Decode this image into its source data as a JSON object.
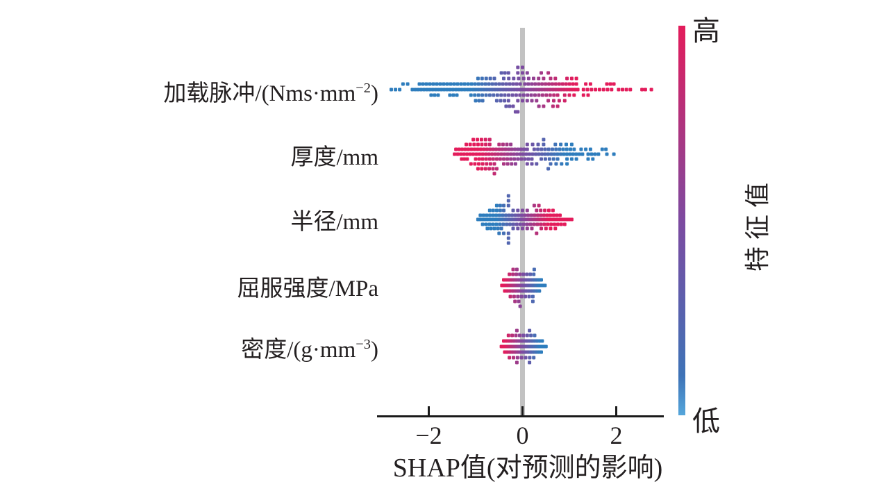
{
  "chart_data": {
    "type": "scatter",
    "subtype": "shap-beeswarm-summary",
    "x_axis": {
      "title": "SHAP值(对预测的影响)",
      "range": [
        -3.1,
        3.1
      ],
      "ticks": [
        {
          "value": -2,
          "label": "−2"
        },
        {
          "value": 0,
          "label": "0"
        },
        {
          "value": 2,
          "label": "2"
        }
      ]
    },
    "axis_color": "#1a1a1a",
    "zero_line_color": "#c2c2c2",
    "colorbar": {
      "title": "特征值",
      "high_label": "高",
      "low_label": "低",
      "color_high": "#e31c5b",
      "color_mid": "#7d4aa0",
      "color_low": "#2e7dbd",
      "color_low_tip": "#55a6db"
    },
    "runs_format": "[row_offset_px, shap_from, shap_to, point_count]; point color = feature value, increasing with shap*color_dir saturated at |shap|=color_scale",
    "features": [
      {
        "name": "loading-impulse",
        "label_main": "加载脉冲/(Nms·mm",
        "label_sup": "−2",
        "label_end": ")",
        "shap_range": [
          -2.8,
          2.75
        ],
        "color_dir": 1,
        "color_scale": 1.1,
        "runs": [
          [
            0,
            -2.8,
            -2.62,
            3
          ],
          [
            0,
            -2.35,
            -1.05,
            22
          ],
          [
            0,
            -1.0,
            1.18,
            38
          ],
          [
            0,
            1.3,
            1.9,
            8
          ],
          [
            0,
            2.05,
            2.3,
            4
          ],
          [
            0,
            2.55,
            2.62,
            2
          ],
          [
            0,
            2.75,
            2.75,
            1
          ],
          [
            -8,
            -2.55,
            -2.45,
            2
          ],
          [
            -8,
            -2.2,
            -0.05,
            30
          ],
          [
            -8,
            0.05,
            1.15,
            16
          ],
          [
            -8,
            1.35,
            1.45,
            2
          ],
          [
            -8,
            1.8,
            1.95,
            3
          ],
          [
            8,
            -1.95,
            -1.8,
            3
          ],
          [
            8,
            -1.55,
            -1.4,
            3
          ],
          [
            8,
            -1.1,
            0.75,
            24
          ],
          [
            8,
            0.9,
            1.1,
            3
          ],
          [
            8,
            1.3,
            1.4,
            2
          ],
          [
            -16,
            -0.95,
            -0.6,
            5
          ],
          [
            -16,
            -0.4,
            0.45,
            9
          ],
          [
            -16,
            0.6,
            0.7,
            2
          ],
          [
            -16,
            0.95,
            1.15,
            3
          ],
          [
            16,
            -1.0,
            -0.85,
            3
          ],
          [
            16,
            -0.55,
            -0.3,
            4
          ],
          [
            16,
            -0.1,
            0.3,
            5
          ],
          [
            16,
            0.55,
            0.9,
            4
          ],
          [
            -24,
            -0.45,
            -0.3,
            3
          ],
          [
            -24,
            -0.1,
            0.1,
            3
          ],
          [
            -24,
            0.4,
            0.55,
            2
          ],
          [
            24,
            -0.35,
            -0.2,
            3
          ],
          [
            24,
            0.35,
            0.45,
            2
          ],
          [
            24,
            0.65,
            0.75,
            2
          ],
          [
            -32,
            -0.1,
            0.0,
            2
          ],
          [
            32,
            -0.15,
            -0.1,
            2
          ]
        ]
      },
      {
        "name": "thickness",
        "label_main": "厚度/mm",
        "label_sup": "",
        "label_end": "",
        "shap_range": [
          -1.5,
          1.95
        ],
        "color_dir": -1,
        "color_scale": 0.9,
        "runs": [
          [
            0,
            -1.45,
            1.28,
            42
          ],
          [
            0,
            1.4,
            1.62,
            4
          ],
          [
            0,
            1.8,
            1.8,
            1
          ],
          [
            0,
            1.95,
            1.95,
            1
          ],
          [
            -7,
            -1.42,
            0.1,
            24
          ],
          [
            -7,
            0.25,
            1.1,
            12
          ],
          [
            -7,
            1.25,
            1.45,
            3
          ],
          [
            -7,
            1.7,
            1.78,
            2
          ],
          [
            7,
            -1.3,
            -1.18,
            3
          ],
          [
            7,
            -1.0,
            0.2,
            17
          ],
          [
            7,
            0.4,
            0.75,
            5
          ],
          [
            7,
            0.95,
            1.15,
            3
          ],
          [
            7,
            1.4,
            1.5,
            2
          ],
          [
            -14,
            -1.2,
            -0.7,
            7
          ],
          [
            -14,
            -0.5,
            -0.25,
            4
          ],
          [
            -14,
            0.1,
            0.45,
            4
          ],
          [
            -14,
            0.7,
            1.05,
            4
          ],
          [
            14,
            -1.1,
            -0.6,
            7
          ],
          [
            14,
            -0.4,
            -0.15,
            4
          ],
          [
            14,
            0.1,
            0.3,
            3
          ],
          [
            14,
            0.6,
            0.95,
            4
          ],
          [
            -21,
            -1.05,
            -0.7,
            5
          ],
          [
            -21,
            0.45,
            0.45,
            1
          ],
          [
            21,
            -0.95,
            -0.55,
            6
          ],
          [
            21,
            0.55,
            0.55,
            1
          ],
          [
            28,
            -0.6,
            -0.6,
            1
          ]
        ]
      },
      {
        "name": "radius",
        "label_main": "半径/mm",
        "label_sup": "",
        "label_end": "",
        "shap_range": [
          -0.95,
          1.05
        ],
        "color_dir": 1,
        "color_scale": 0.55,
        "runs": [
          [
            0,
            -0.95,
            1.05,
            40
          ],
          [
            -6,
            -0.9,
            0.8,
            26
          ],
          [
            7,
            -0.85,
            0.9,
            25
          ],
          [
            -13,
            -0.7,
            -0.4,
            5
          ],
          [
            -13,
            -0.2,
            0.1,
            4
          ],
          [
            -13,
            0.3,
            0.65,
            5
          ],
          [
            13,
            -0.75,
            -0.45,
            5
          ],
          [
            13,
            -0.2,
            0.2,
            5
          ],
          [
            13,
            0.4,
            0.7,
            4
          ],
          [
            -20,
            -0.55,
            -0.4,
            3
          ],
          [
            -20,
            -0.3,
            -0.3,
            1
          ],
          [
            -20,
            0.25,
            0.35,
            2
          ],
          [
            20,
            -0.5,
            -0.4,
            2
          ],
          [
            20,
            -0.3,
            -0.3,
            1
          ],
          [
            20,
            0.3,
            0.3,
            1
          ],
          [
            -27,
            -0.3,
            -0.3,
            1
          ],
          [
            -34,
            -0.3,
            -0.3,
            1
          ],
          [
            27,
            -0.3,
            -0.3,
            1
          ],
          [
            34,
            -0.3,
            -0.3,
            1
          ]
        ]
      },
      {
        "name": "yield-strength",
        "label_main": "屈服强度/MPa",
        "label_sup": "",
        "label_end": "",
        "shap_range": [
          -0.45,
          0.5
        ],
        "color_dir": -1,
        "color_scale": 0.38,
        "runs": [
          [
            0,
            -0.44,
            0.48,
            24
          ],
          [
            -8,
            -0.4,
            0.4,
            16
          ],
          [
            8,
            -0.38,
            0.36,
            14
          ],
          [
            -16,
            -0.28,
            0.24,
            8
          ],
          [
            16,
            -0.26,
            0.22,
            7
          ],
          [
            -23,
            -0.2,
            -0.12,
            2
          ],
          [
            -23,
            0.25,
            0.25,
            1
          ],
          [
            23,
            -0.16,
            -0.08,
            2
          ],
          [
            23,
            0.22,
            0.22,
            1
          ],
          [
            30,
            -0.05,
            -0.05,
            1
          ]
        ]
      },
      {
        "name": "density",
        "label_main": "密度/(g·mm",
        "label_sup": "−3",
        "label_end": ")",
        "shap_range": [
          -0.45,
          0.5
        ],
        "color_dir": -1,
        "color_scale": 0.38,
        "runs": [
          [
            0,
            -0.45,
            0.5,
            24
          ],
          [
            -8,
            -0.4,
            0.42,
            16
          ],
          [
            8,
            -0.38,
            0.4,
            15
          ],
          [
            -16,
            -0.3,
            0.26,
            8
          ],
          [
            16,
            -0.28,
            0.24,
            7
          ],
          [
            -23,
            -0.12,
            -0.12,
            1
          ],
          [
            -23,
            0.15,
            0.15,
            1
          ],
          [
            23,
            -0.12,
            -0.12,
            1
          ],
          [
            23,
            0.15,
            0.15,
            1
          ]
        ]
      }
    ]
  }
}
